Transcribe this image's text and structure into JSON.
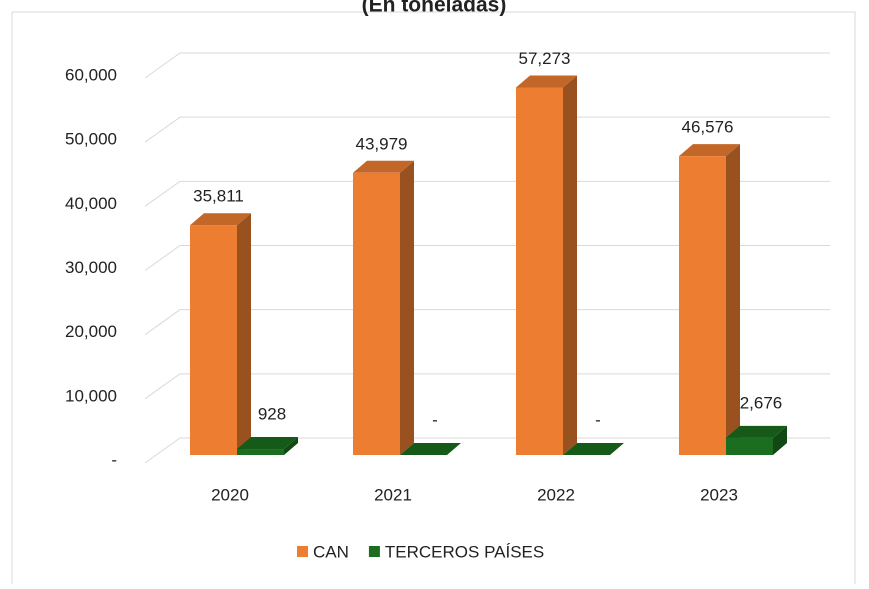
{
  "chart_data": {
    "type": "bar3d",
    "title": "(En toneladas)",
    "categories": [
      "2020",
      "2021",
      "2022",
      "2023"
    ],
    "series": [
      {
        "name": "CAN",
        "color": "#ed7d31",
        "values": [
          35811,
          43979,
          57273,
          46576
        ],
        "value_labels": [
          "35,811",
          "43,979",
          "57,273",
          "46,576"
        ]
      },
      {
        "name": "TERCEROS PAÍSES",
        "color": "#1b6e1f",
        "values": [
          928,
          0,
          0,
          2676
        ],
        "value_labels": [
          "928",
          "-",
          "-",
          "2,676"
        ]
      }
    ],
    "ylim": [
      0,
      60000
    ],
    "yticks": [
      {
        "value": 0,
        "label": "-"
      },
      {
        "value": 10000,
        "label": "10,000"
      },
      {
        "value": 20000,
        "label": "20,000"
      },
      {
        "value": 30000,
        "label": "30,000"
      },
      {
        "value": 40000,
        "label": "40,000"
      },
      {
        "value": 50000,
        "label": "50,000"
      },
      {
        "value": 60000,
        "label": "60,000"
      }
    ],
    "grid": true
  }
}
